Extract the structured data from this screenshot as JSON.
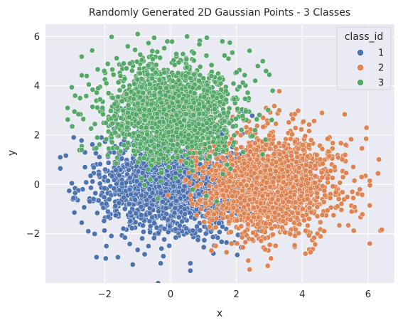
{
  "chart_data": {
    "type": "scatter",
    "title": "Randomly Generated 2D Gaussian Points - 3 Classes",
    "xlabel": "x",
    "ylabel": "y",
    "xlim": [
      -3.8,
      6.8
    ],
    "ylim": [
      -4.0,
      6.5
    ],
    "xticks": [
      -2,
      0,
      2,
      4,
      6
    ],
    "yticks": [
      -2,
      0,
      2,
      4,
      6
    ],
    "xtick_labels": [
      "−2",
      "0",
      "2",
      "4",
      "6"
    ],
    "ytick_labels": [
      "−2",
      "0",
      "2",
      "4",
      "6"
    ],
    "grid": true,
    "background": "#eaeaf2",
    "legend": {
      "title": "class_id",
      "placement": "top-right",
      "entries": [
        "1",
        "2",
        "3"
      ]
    },
    "series": [
      {
        "name": "1",
        "color": "#4c72b0",
        "center": [
          0,
          0
        ],
        "std": [
          1.0,
          1.0
        ],
        "approx_count": 1800,
        "points": [
          [
            -3.35,
            1.1
          ],
          [
            -3.35,
            0.65
          ],
          [
            -3.0,
            0.05
          ],
          [
            -2.9,
            -0.35
          ],
          [
            -2.9,
            -0.55
          ],
          [
            -2.7,
            -1.55
          ],
          [
            -2.5,
            -1.9
          ],
          [
            -2.25,
            -2.95
          ],
          [
            -1.95,
            -2.5
          ],
          [
            -1.6,
            -2.95
          ],
          [
            -1.15,
            -3.25
          ],
          [
            -0.3,
            -3.2
          ],
          [
            0.6,
            -3.5
          ],
          [
            0.6,
            -3.2
          ],
          [
            1.3,
            -2.8
          ],
          [
            -2.6,
            1.3
          ],
          [
            -2.1,
            1.9
          ],
          [
            -1.8,
            1.75
          ],
          [
            -2.95,
            -0.55
          ],
          [
            -2.6,
            0.7
          ]
        ]
      },
      {
        "name": "2",
        "color": "#dd8452",
        "center": [
          3,
          0
        ],
        "std": [
          1.0,
          1.0
        ],
        "approx_count": 1800,
        "points": [
          [
            5.95,
            2.3
          ],
          [
            6.3,
            0.45
          ],
          [
            6.05,
            0.15
          ],
          [
            6.05,
            -0.85
          ],
          [
            6.05,
            -2.4
          ],
          [
            5.75,
            -0.2
          ],
          [
            5.8,
            0.3
          ],
          [
            5.55,
            -0.55
          ],
          [
            5.5,
            -1.1
          ],
          [
            4.95,
            -1.25
          ],
          [
            4.6,
            2.9
          ],
          [
            2.9,
            3.1
          ],
          [
            3.3,
            3.0
          ],
          [
            2.4,
            -3.45
          ],
          [
            2.95,
            -3.3
          ],
          [
            3.05,
            -3.0
          ],
          [
            4.25,
            -2.75
          ],
          [
            1.85,
            -2.4
          ],
          [
            1.7,
            -2.75
          ],
          [
            5.3,
            1.2
          ]
        ]
      },
      {
        "name": "3",
        "color": "#55a868",
        "center": [
          0,
          3
        ],
        "std": [
          1.0,
          1.0
        ],
        "approx_count": 1800,
        "points": [
          [
            -1.0,
            6.1
          ],
          [
            -0.5,
            5.95
          ],
          [
            0.5,
            6.0
          ],
          [
            -0.1,
            5.8
          ],
          [
            1.1,
            5.95
          ],
          [
            1.8,
            5.75
          ],
          [
            2.8,
            5.0
          ],
          [
            3.0,
            4.45
          ],
          [
            3.1,
            3.8
          ],
          [
            -2.9,
            3.6
          ],
          [
            -2.75,
            3.5
          ],
          [
            -2.8,
            2.85
          ],
          [
            -2.65,
            2.65
          ],
          [
            -2.7,
            1.55
          ],
          [
            -2.7,
            1.4
          ],
          [
            -1.95,
            4.1
          ],
          [
            -2.2,
            3.9
          ],
          [
            2.65,
            4.8
          ],
          [
            2.9,
            4.6
          ],
          [
            -1.3,
            5.6
          ]
        ]
      }
    ]
  }
}
